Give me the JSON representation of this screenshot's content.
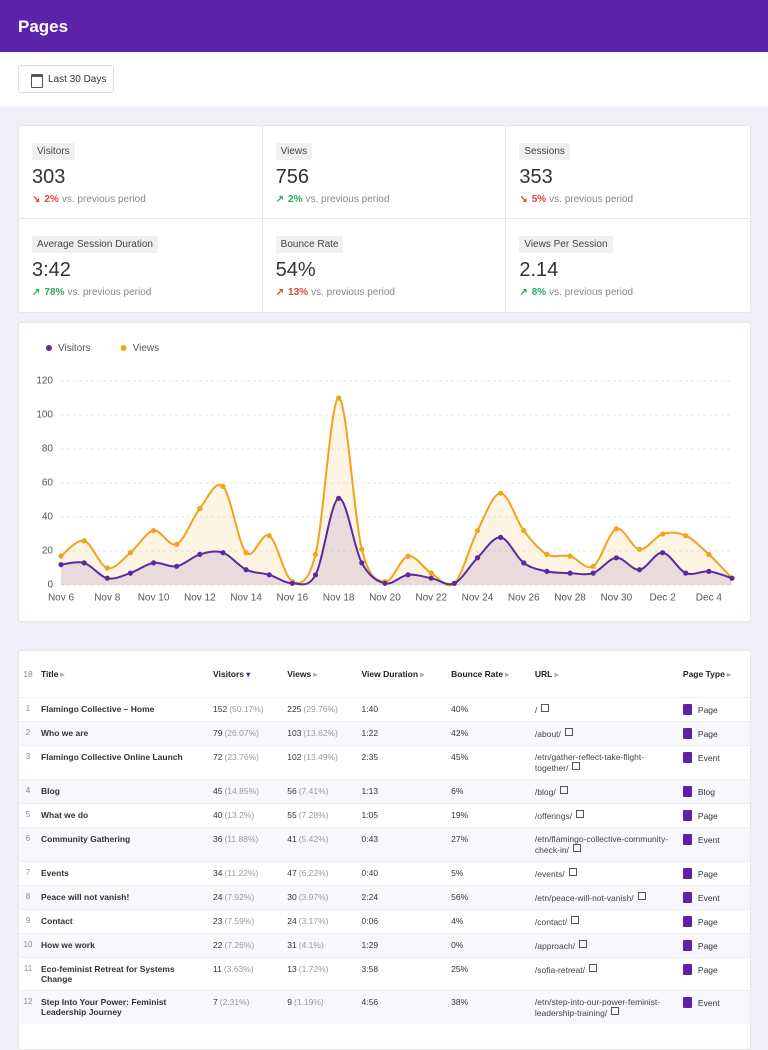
{
  "header": {
    "title": "Pages"
  },
  "date_range": "Last 30 Days",
  "stats": [
    {
      "label": "Visitors",
      "value": "303",
      "change": "2%",
      "direction": "down",
      "trend": "bad",
      "note": "vs. previous period"
    },
    {
      "label": "Views",
      "value": "756",
      "change": "2%",
      "direction": "up",
      "trend": "good",
      "note": "vs. previous period"
    },
    {
      "label": "Sessions",
      "value": "353",
      "change": "5%",
      "direction": "down",
      "trend": "bad",
      "note": "vs. previous period"
    },
    {
      "label": "Average Session Duration",
      "value": "3:42",
      "change": "78%",
      "direction": "up",
      "trend": "good",
      "note": "vs. previous period"
    },
    {
      "label": "Bounce Rate",
      "value": "54%",
      "change": "13%",
      "direction": "up",
      "trend": "bad",
      "note": "vs. previous period"
    },
    {
      "label": "Views Per Session",
      "value": "2.14",
      "change": "8%",
      "direction": "up",
      "trend": "good",
      "note": "vs. previous period"
    }
  ],
  "chart_data": {
    "type": "line",
    "area": true,
    "grid": true,
    "legend": "top-left",
    "categories": [
      "Nov 6",
      null,
      "Nov 8",
      null,
      "Nov 10",
      null,
      "Nov 12",
      null,
      "Nov 14",
      null,
      "Nov 16",
      null,
      "Nov 18",
      null,
      "Nov 20",
      null,
      "Nov 22",
      null,
      "Nov 24",
      null,
      "Nov 26",
      null,
      "Nov 28",
      null,
      "Nov 30",
      null,
      "Dec 2",
      null,
      "Dec 4",
      null
    ],
    "series": [
      {
        "name": "Visitors",
        "color": "#5b2aa0",
        "values": [
          12,
          13,
          4,
          7,
          13,
          11,
          18,
          19,
          9,
          6,
          1,
          6,
          51,
          13,
          1,
          6,
          4,
          1,
          16,
          28,
          13,
          8,
          7,
          7,
          16,
          9,
          19,
          7,
          8,
          4
        ]
      },
      {
        "name": "Views",
        "color": "#f2a21e",
        "values": [
          17,
          26,
          10,
          19,
          32,
          24,
          45,
          58,
          19,
          29,
          2,
          18,
          110,
          21,
          2,
          17,
          7,
          1,
          32,
          54,
          32,
          18,
          17,
          11,
          33,
          21,
          30,
          29,
          18,
          4
        ]
      }
    ],
    "ylim": [
      0,
      120
    ],
    "yticks": [
      0,
      20,
      40,
      60,
      80,
      100,
      120
    ]
  },
  "table": {
    "count": "18",
    "columns": [
      {
        "label": "Title"
      },
      {
        "label": "Visitors",
        "sorted": "desc"
      },
      {
        "label": "Views"
      },
      {
        "label": "View Duration"
      },
      {
        "label": "Bounce Rate"
      },
      {
        "label": "URL"
      },
      {
        "label": "Page Type"
      }
    ],
    "rows": [
      {
        "n": "1",
        "title": "Flamingo Collective – Home",
        "visitors": "152",
        "visitors_pct": "(50.17%)",
        "views": "225",
        "views_pct": "(29.76%)",
        "duration": "1:40",
        "bounce": "40%",
        "url": "/",
        "type": "Page"
      },
      {
        "n": "2",
        "title": "Who we are",
        "visitors": "79",
        "visitors_pct": "(26.07%)",
        "views": "103",
        "views_pct": "(13.62%)",
        "duration": "1:22",
        "bounce": "42%",
        "url": "/about/",
        "type": "Page"
      },
      {
        "n": "3",
        "title": "Flamingo Collective Online Launch",
        "visitors": "72",
        "visitors_pct": "(23.76%)",
        "views": "102",
        "views_pct": "(13.49%)",
        "duration": "2:35",
        "bounce": "45%",
        "url": "/etn/gather-reflect-take-flight-together/",
        "type": "Event"
      },
      {
        "n": "4",
        "title": "Blog",
        "visitors": "45",
        "visitors_pct": "(14.85%)",
        "views": "56",
        "views_pct": "(7.41%)",
        "duration": "1:13",
        "bounce": "6%",
        "url": "/blog/",
        "type": "Blog"
      },
      {
        "n": "5",
        "title": "What we do",
        "visitors": "40",
        "visitors_pct": "(13.2%)",
        "views": "55",
        "views_pct": "(7.28%)",
        "duration": "1:05",
        "bounce": "19%",
        "url": "/offerings/",
        "type": "Page"
      },
      {
        "n": "6",
        "title": "Community Gathering",
        "visitors": "36",
        "visitors_pct": "(11.88%)",
        "views": "41",
        "views_pct": "(5.42%)",
        "duration": "0:43",
        "bounce": "27%",
        "url": "/etn/flamingo-collective-community-check-in/",
        "type": "Event"
      },
      {
        "n": "7",
        "title": "Events",
        "visitors": "34",
        "visitors_pct": "(11.22%)",
        "views": "47",
        "views_pct": "(6.22%)",
        "duration": "0:40",
        "bounce": "5%",
        "url": "/events/",
        "type": "Page"
      },
      {
        "n": "8",
        "title": "Peace will not vanish!",
        "visitors": "24",
        "visitors_pct": "(7.92%)",
        "views": "30",
        "views_pct": "(3.97%)",
        "duration": "2:24",
        "bounce": "56%",
        "url": "/etn/peace-will-not-vanish/",
        "type": "Event"
      },
      {
        "n": "9",
        "title": "Contact",
        "visitors": "23",
        "visitors_pct": "(7.59%)",
        "views": "24",
        "views_pct": "(3.17%)",
        "duration": "0:06",
        "bounce": "4%",
        "url": "/contact/",
        "type": "Page"
      },
      {
        "n": "10",
        "title": "How we work",
        "visitors": "22",
        "visitors_pct": "(7.26%)",
        "views": "31",
        "views_pct": "(4.1%)",
        "duration": "1:29",
        "bounce": "0%",
        "url": "/approach/",
        "type": "Page"
      },
      {
        "n": "11",
        "title": "Eco-feminist Retreat for Systems Change",
        "visitors": "11",
        "visitors_pct": "(3.63%)",
        "views": "13",
        "views_pct": "(1.72%)",
        "duration": "3:58",
        "bounce": "25%",
        "url": "/sofia-retreat/",
        "type": "Page"
      },
      {
        "n": "12",
        "title": "Step Into Your Power: Feminist Leadership Journey",
        "visitors": "7",
        "visitors_pct": "(2.31%)",
        "views": "9",
        "views_pct": "(1.19%)",
        "duration": "4:56",
        "bounce": "38%",
        "url": "/etn/step-into-our-power-feminist-leadership-training/",
        "type": "Event"
      }
    ]
  }
}
